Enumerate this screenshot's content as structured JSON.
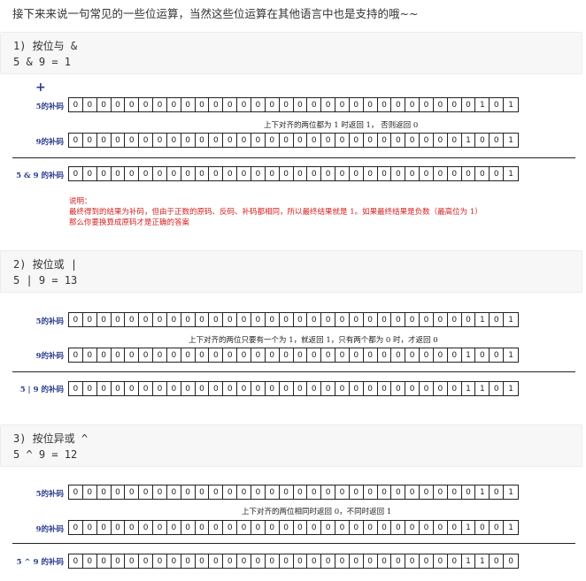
{
  "intro": "接下来来说一句常见的一些位运算，当然这些位运算在其他语言中也是支持的哦~~",
  "sections": [
    {
      "code_lines": [
        "1) 按位与 &",
        "5 & 9 = 1"
      ],
      "rows": [
        {
          "label": "5的补码",
          "bits": "00000000000000000000000000000101"
        },
        {
          "label": "9的补码",
          "bits": "00000000000000000000000000001001"
        },
        {
          "label": "5 & 9 的补码",
          "bits": "00000000000000000000000000000001"
        }
      ],
      "note": "上下对齐的两位都为 1 时返回 1， 否则返回 0",
      "explain": [
        "说明：",
        "最终得到的结果为补码，但由于正数的原码、反码、补码都相同，所以最终结果就是 1。如果最终结果是负数（最高位为 1）",
        "那么你要换算成原码才是正确的答案"
      ]
    },
    {
      "code_lines": [
        "2) 按位或 |",
        "5 | 9 = 13"
      ],
      "rows": [
        {
          "label": "5的补码",
          "bits": "00000000000000000000000000000101"
        },
        {
          "label": "9的补码",
          "bits": "00000000000000000000000000001001"
        },
        {
          "label": "5 | 9 的补码",
          "bits": "00000000000000000000000000001101"
        }
      ],
      "note": "上下对齐的两位只要有一个为 1，就返回 1，只有两个都为 0 时，才返回 0"
    },
    {
      "code_lines": [
        "3) 按位异或 ^",
        "5 ^ 9 = 12"
      ],
      "rows": [
        {
          "label": "5的补码",
          "bits": "00000000000000000000000000000101"
        },
        {
          "label": "9的补码",
          "bits": "00000000000000000000000000001001"
        },
        {
          "label": "5 ^ 9 的补码",
          "bits": "00000000000000000000000000001100"
        }
      ],
      "note": "上下对齐的两位相同时返回 0，不同时返回 1"
    }
  ]
}
